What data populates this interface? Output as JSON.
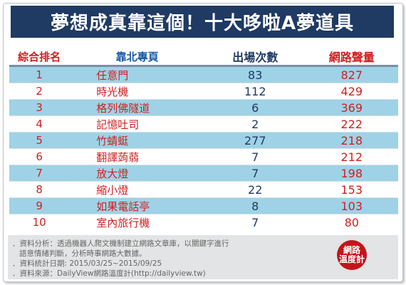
{
  "title": "夢想成真靠這個！十大哆啦A夢道具",
  "table": {
    "headers": [
      "綜合排名",
      "靠北專頁",
      "出場次數",
      "網路聲量"
    ],
    "rows": [
      {
        "rank": "1",
        "name": "任意門",
        "count": "83",
        "volume": "827"
      },
      {
        "rank": "2",
        "name": "時光機",
        "count": "112",
        "volume": "429"
      },
      {
        "rank": "3",
        "name": "格列佛隧道",
        "count": "6",
        "volume": "369"
      },
      {
        "rank": "4",
        "name": "記憶吐司",
        "count": "2",
        "volume": "222"
      },
      {
        "rank": "5",
        "name": "竹蜻蜓",
        "count": "277",
        "volume": "218"
      },
      {
        "rank": "6",
        "name": "翻譯蒟蒻",
        "count": "7",
        "volume": "212"
      },
      {
        "rank": "7",
        "name": "放大燈",
        "count": "7",
        "volume": "198"
      },
      {
        "rank": "8",
        "name": "縮小燈",
        "count": "22",
        "volume": "153"
      },
      {
        "rank": "9",
        "name": "如果電話亭",
        "count": "8",
        "volume": "103"
      },
      {
        "rank": "10",
        "name": "室內旅行機",
        "count": "7",
        "volume": "80"
      }
    ]
  },
  "notes": [
    "．資料分析：透過機器人爬文機制建立網路文章庫，以關鍵字進行",
    "語意情緒判斷，分析時事網路大數據。",
    "．資料統計日期: 2015/03/25~2015/09/25",
    "．資料來源：DailyView網路溫度計(http://dailyview.tw)"
  ],
  "logo": {
    "line1": "網路",
    "line2": "溫度計"
  },
  "colors": {
    "banner": "#1f3a63",
    "header_text": "#1a5aa6",
    "stripe": "#9fd2e6",
    "rank_red": "#d02020",
    "logo_red": "#c4151c"
  }
}
